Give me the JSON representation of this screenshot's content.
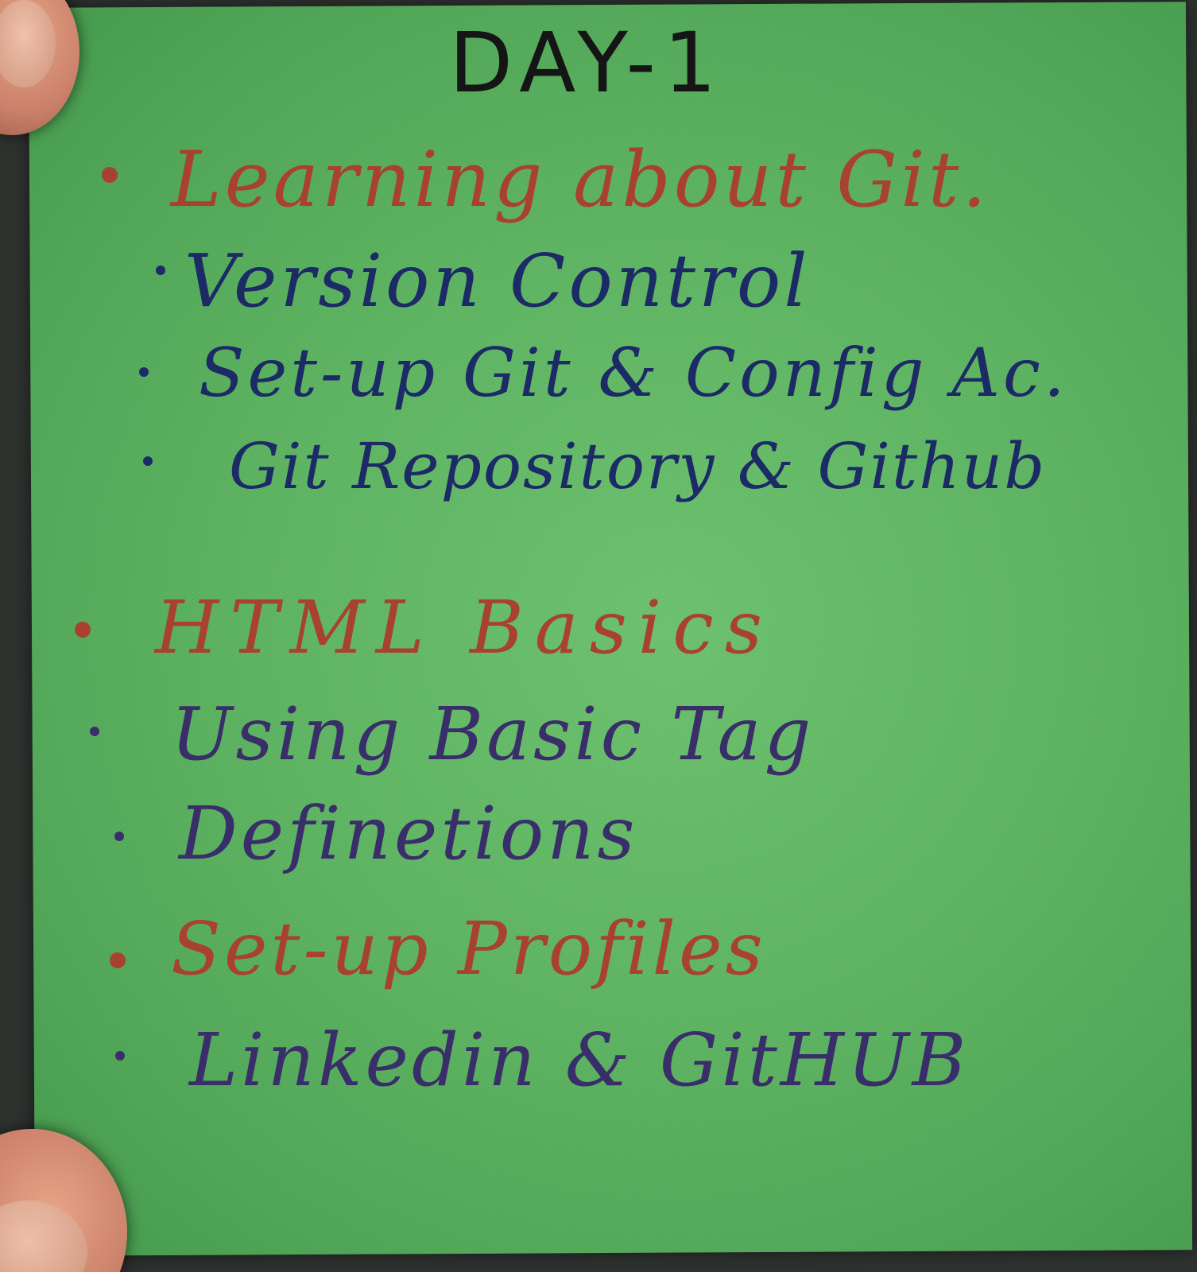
{
  "note": {
    "title": "DAY-1",
    "sections": [
      {
        "heading": "Learning about Git.",
        "items": [
          "Version Control",
          "Set-up Git & Config Ac.",
          "Git Repository & Github"
        ]
      },
      {
        "heading": "HTML Basics",
        "items": [
          "Using Basic Tag",
          "Definetions"
        ]
      },
      {
        "heading": "Set-up Profiles",
        "items": [
          "Linkedin & GitHUB"
        ]
      }
    ]
  },
  "colors": {
    "paper": "#5eb562",
    "heading_ink": "#a8412e",
    "item_ink": "#1c2a66",
    "title_ink": "#151515"
  }
}
